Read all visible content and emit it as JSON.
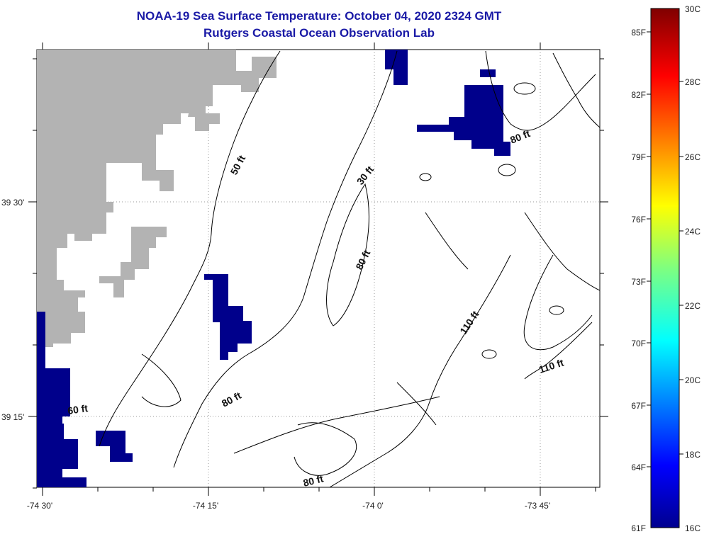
{
  "header": {
    "title": "NOAA-19 Sea Surface Temperature:  October 04, 2020 2324 GMT",
    "subtitle": "Rutgers Coastal Ocean Observation Lab"
  },
  "map": {
    "lon_labels": [
      "-74 30'",
      "-74 15'",
      "-74 0'",
      "-73 45'"
    ],
    "lat_labels": [
      "39 30'",
      "39 15'"
    ],
    "contour_labels": [
      "50 ft",
      "30 ft",
      "80 ft",
      "80 ft",
      "110 ft",
      "110 ft",
      "80 ft",
      "60 ft",
      "80 ft"
    ],
    "colors": {
      "land": "#b3b3b3",
      "sst_cold": "#00008b",
      "contour": "#000000"
    }
  },
  "colorbar": {
    "fahrenheit": [
      "85F",
      "82F",
      "79F",
      "76F",
      "73F",
      "70F",
      "67F",
      "64F",
      "61F"
    ],
    "celsius": [
      "30C",
      "28C",
      "26C",
      "24C",
      "22C",
      "20C",
      "18C",
      "16C"
    ]
  }
}
